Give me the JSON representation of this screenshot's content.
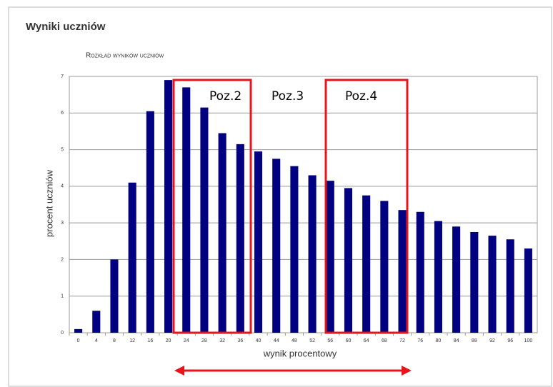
{
  "chart_data": {
    "type": "bar",
    "header": "Wyniki uczniów",
    "title": "Rozkład wyników uczniów",
    "x_label": "wynik procentowy",
    "y_label": "procent uczniów",
    "categories": [
      0,
      4,
      8,
      12,
      16,
      20,
      24,
      28,
      32,
      36,
      40,
      44,
      48,
      52,
      56,
      60,
      64,
      68,
      72,
      76,
      80,
      84,
      88,
      92,
      96,
      100
    ],
    "values": [
      0.1,
      0.6,
      2.0,
      4.1,
      6.05,
      6.9,
      6.7,
      6.15,
      5.45,
      5.15,
      4.95,
      4.75,
      4.55,
      4.3,
      4.15,
      3.95,
      3.75,
      3.6,
      3.35,
      3.3,
      3.05,
      2.9,
      2.75,
      2.65,
      2.55,
      2.3
    ],
    "color": "#000080",
    "ylim": [
      0,
      7
    ],
    "yticks": [
      0,
      1,
      2,
      3,
      4,
      5,
      6,
      7
    ],
    "grid": true,
    "annotations": [
      "Poz.2",
      "Poz.3",
      "Poz.4"
    ],
    "annotation_color": "#e8141b"
  }
}
